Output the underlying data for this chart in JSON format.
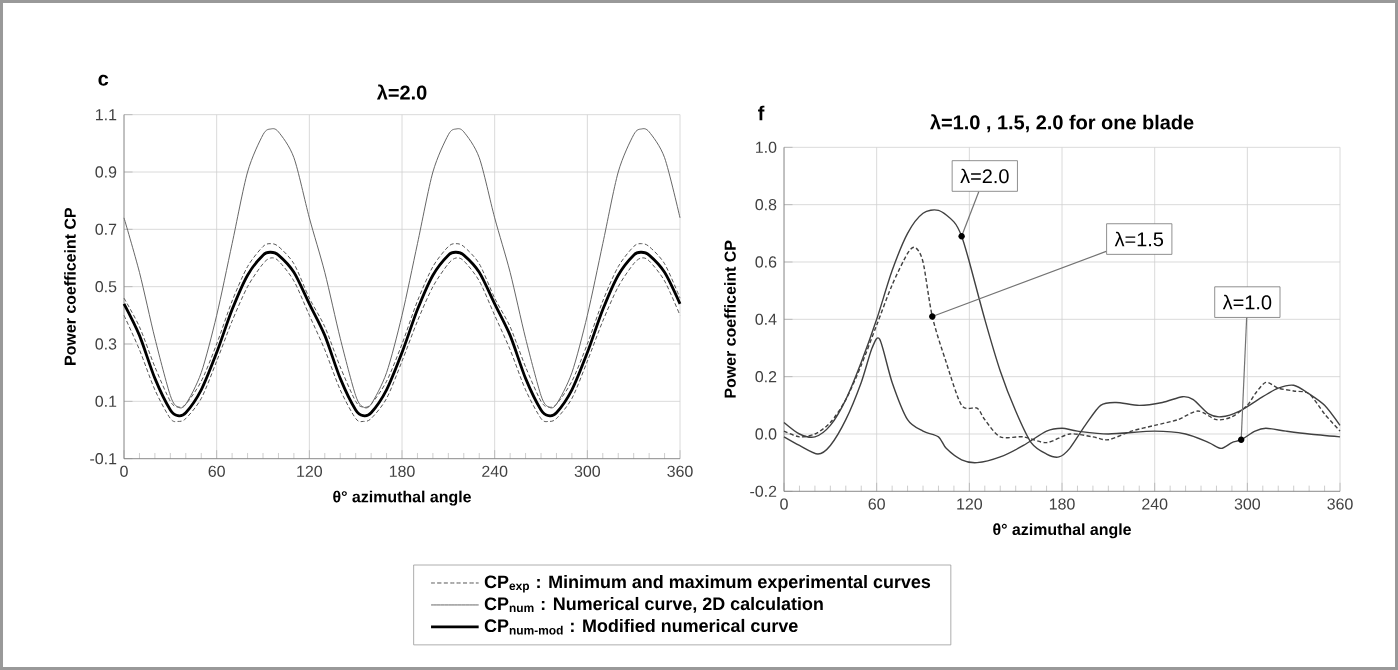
{
  "chart_data": [
    {
      "type": "line",
      "title": "λ=2.0",
      "annotations": [
        "c"
      ],
      "xlabel": "θ° azimuthal angle",
      "ylabel": "Power coefficeint CP",
      "xlim": [
        0,
        360
      ],
      "xticks": [
        0,
        60,
        120,
        180,
        240,
        300,
        360
      ],
      "ylim": [
        -0.1,
        1.1
      ],
      "yticks": [
        -0.1,
        0.1,
        0.3,
        0.5,
        0.7,
        0.9,
        1.1
      ],
      "grid": true,
      "legend": "bottom",
      "series": [
        {
          "name": "CP$_{exp}$ : Minimum and maximum experimental curves",
          "color": "#555555",
          "line_style": "dashed",
          "x": [
            0,
            10,
            20,
            30,
            35,
            40,
            50,
            60,
            70,
            80,
            90,
            95,
            100,
            110,
            120,
            130,
            140,
            150,
            155,
            160,
            170,
            180,
            190,
            200,
            210,
            215,
            220,
            230,
            240,
            250,
            260,
            270,
            275,
            280,
            290,
            300,
            310,
            320,
            330,
            335,
            340,
            350,
            360
          ],
          "values": [
            0.46,
            0.36,
            0.22,
            0.1,
            0.08,
            0.09,
            0.17,
            0.3,
            0.45,
            0.57,
            0.64,
            0.65,
            0.64,
            0.58,
            0.46,
            0.36,
            0.22,
            0.1,
            0.08,
            0.09,
            0.17,
            0.3,
            0.45,
            0.57,
            0.64,
            0.65,
            0.64,
            0.58,
            0.46,
            0.36,
            0.22,
            0.1,
            0.08,
            0.09,
            0.17,
            0.3,
            0.45,
            0.57,
            0.64,
            0.65,
            0.64,
            0.58,
            0.46
          ]
        },
        {
          "color": "#555555",
          "line_style": "dashed",
          "x": [
            0,
            10,
            20,
            30,
            35,
            40,
            50,
            60,
            70,
            80,
            90,
            95,
            100,
            110,
            120,
            130,
            140,
            150,
            155,
            160,
            170,
            180,
            190,
            200,
            210,
            215,
            220,
            230,
            240,
            250,
            260,
            270,
            275,
            280,
            290,
            300,
            310,
            320,
            330,
            335,
            340,
            350,
            360
          ],
          "values": [
            0.4,
            0.28,
            0.14,
            0.04,
            0.03,
            0.04,
            0.11,
            0.24,
            0.38,
            0.5,
            0.58,
            0.6,
            0.59,
            0.52,
            0.4,
            0.28,
            0.14,
            0.04,
            0.03,
            0.04,
            0.11,
            0.24,
            0.38,
            0.5,
            0.58,
            0.6,
            0.59,
            0.52,
            0.4,
            0.28,
            0.14,
            0.04,
            0.03,
            0.04,
            0.11,
            0.24,
            0.38,
            0.5,
            0.58,
            0.6,
            0.59,
            0.52,
            0.4
          ]
        },
        {
          "name": "CP$_{num}$ : Numerical curve, 2D calculation",
          "color": "#666666",
          "line_style": "solid",
          "x": [
            0,
            10,
            20,
            30,
            35,
            40,
            50,
            60,
            70,
            80,
            90,
            95,
            100,
            110,
            120,
            130,
            140,
            150,
            155,
            160,
            170,
            180,
            190,
            200,
            210,
            215,
            220,
            230,
            240,
            250,
            260,
            270,
            275,
            280,
            290,
            300,
            310,
            320,
            330,
            335,
            340,
            350,
            360
          ],
          "values": [
            0.74,
            0.55,
            0.32,
            0.12,
            0.08,
            0.09,
            0.2,
            0.4,
            0.65,
            0.9,
            1.03,
            1.05,
            1.04,
            0.95,
            0.74,
            0.55,
            0.32,
            0.12,
            0.08,
            0.09,
            0.2,
            0.4,
            0.65,
            0.9,
            1.03,
            1.05,
            1.04,
            0.95,
            0.74,
            0.55,
            0.32,
            0.12,
            0.08,
            0.09,
            0.2,
            0.4,
            0.65,
            0.9,
            1.03,
            1.05,
            1.04,
            0.95,
            0.74
          ]
        },
        {
          "name": "CP$_{num-mod}$ : Modified numerical curve",
          "color": "#000000",
          "line_style": "solid",
          "x": [
            0,
            10,
            20,
            30,
            35,
            40,
            50,
            60,
            70,
            80,
            90,
            95,
            100,
            110,
            120,
            130,
            140,
            150,
            155,
            160,
            170,
            180,
            190,
            200,
            210,
            215,
            220,
            230,
            240,
            250,
            260,
            270,
            275,
            280,
            290,
            300,
            310,
            320,
            330,
            335,
            340,
            350,
            360
          ],
          "values": [
            0.44,
            0.33,
            0.18,
            0.07,
            0.05,
            0.06,
            0.14,
            0.27,
            0.42,
            0.54,
            0.61,
            0.62,
            0.61,
            0.55,
            0.44,
            0.33,
            0.18,
            0.07,
            0.05,
            0.06,
            0.14,
            0.27,
            0.42,
            0.54,
            0.61,
            0.62,
            0.61,
            0.55,
            0.44,
            0.33,
            0.18,
            0.07,
            0.05,
            0.06,
            0.14,
            0.27,
            0.42,
            0.54,
            0.61,
            0.62,
            0.61,
            0.55,
            0.44
          ]
        }
      ]
    },
    {
      "type": "line",
      "title": "λ=1.0 , 1.5, 2.0 for one blade",
      "annotations": [
        "f"
      ],
      "xlabel": "θ° azimuthal angle",
      "ylabel": "Power coefficeint CP",
      "xlim": [
        0,
        360
      ],
      "xticks": [
        0,
        60,
        120,
        180,
        240,
        300,
        360
      ],
      "ylim": [
        -0.2,
        1.0
      ],
      "yticks": [
        -0.2,
        {
          "value": 0,
          "label": "0.0"
        },
        0.2,
        0.4,
        0.6,
        0.8,
        {
          "value": 1,
          "label": "1.0"
        }
      ],
      "grid": true,
      "series": [
        {
          "name": "λ=2.0",
          "color": "#404040",
          "line_style": "solid",
          "x": [
            0,
            10,
            20,
            30,
            40,
            50,
            60,
            70,
            80,
            90,
            100,
            110,
            115,
            120,
            130,
            140,
            150,
            160,
            170,
            178,
            185,
            195,
            205,
            215,
            230,
            245,
            258,
            265,
            275,
            283,
            295,
            310,
            320,
            330,
            340,
            350,
            360
          ],
          "values": [
            0.04,
            0.0,
            -0.01,
            0.03,
            0.12,
            0.25,
            0.4,
            0.57,
            0.7,
            0.77,
            0.78,
            0.74,
            0.69,
            0.6,
            0.4,
            0.22,
            0.08,
            -0.03,
            -0.07,
            -0.08,
            -0.05,
            0.03,
            0.1,
            0.11,
            0.1,
            0.11,
            0.13,
            0.12,
            0.07,
            0.06,
            0.08,
            0.13,
            0.16,
            0.17,
            0.14,
            0.1,
            0.03
          ]
        },
        {
          "name": "λ=1.5",
          "color": "#404040",
          "line_style": "dashed",
          "x": [
            0,
            10,
            20,
            30,
            40,
            50,
            60,
            70,
            80,
            85,
            90,
            96,
            105,
            115,
            125,
            130,
            140,
            155,
            170,
            185,
            200,
            210,
            225,
            240,
            255,
            268,
            280,
            290,
            300,
            305,
            312,
            320,
            330,
            340,
            350,
            360
          ],
          "values": [
            0.01,
            -0.01,
            0.0,
            0.04,
            0.12,
            0.24,
            0.38,
            0.52,
            0.63,
            0.65,
            0.6,
            0.41,
            0.25,
            0.1,
            0.09,
            0.05,
            -0.01,
            -0.01,
            -0.03,
            0.0,
            -0.01,
            -0.02,
            0.01,
            0.03,
            0.05,
            0.08,
            0.05,
            0.06,
            0.1,
            0.14,
            0.18,
            0.16,
            0.15,
            0.14,
            0.07,
            0.01
          ]
        },
        {
          "name": "λ=1.0",
          "color": "#404040",
          "line_style": "solid",
          "x": [
            0,
            10,
            22,
            30,
            40,
            50,
            57,
            62,
            70,
            80,
            90,
            100,
            105,
            115,
            125,
            140,
            155,
            170,
            180,
            190,
            210,
            240,
            260,
            275,
            283,
            290,
            296,
            305,
            312,
            325,
            340,
            360
          ],
          "values": [
            -0.01,
            -0.04,
            -0.07,
            -0.04,
            0.05,
            0.18,
            0.3,
            0.33,
            0.18,
            0.05,
            0.01,
            -0.01,
            -0.05,
            -0.09,
            -0.1,
            -0.08,
            -0.04,
            0.01,
            0.02,
            0.01,
            0.0,
            0.01,
            0.0,
            -0.03,
            -0.05,
            -0.03,
            -0.02,
            0.01,
            0.02,
            0.01,
            0.0,
            -0.01
          ]
        }
      ]
    }
  ]
}
